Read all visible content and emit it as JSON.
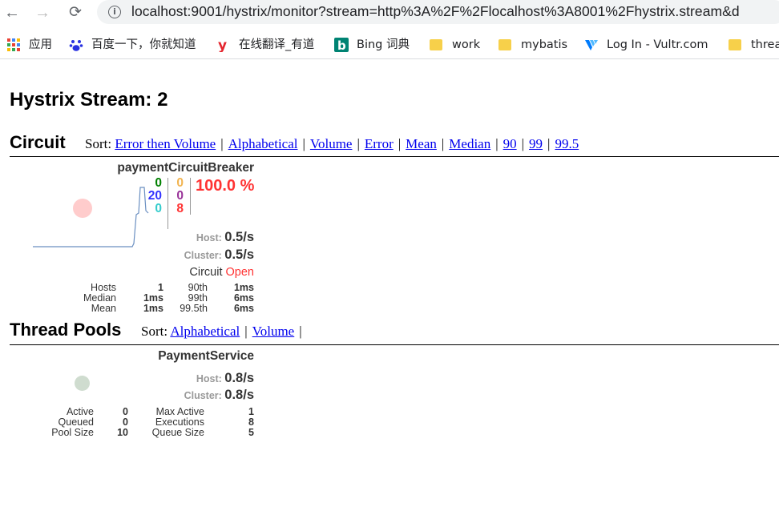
{
  "browser": {
    "url": "localhost:9001/hystrix/monitor?stream=http%3A%2F%2Flocalhost%3A8001%2Fhystrix.stream&d",
    "bookmarks": [
      {
        "label": "应用",
        "icon": "apps-grid-icon"
      },
      {
        "label": "百度一下，你就知道",
        "icon": "baidu-paw-icon"
      },
      {
        "label": "在线翻译_有道",
        "icon": "youdao-logo-icon"
      },
      {
        "label": "Bing 词典",
        "icon": "bing-logo-icon"
      },
      {
        "label": "work",
        "icon": "folder-icon"
      },
      {
        "label": "mybatis",
        "icon": "folder-icon"
      },
      {
        "label": "Log In - Vultr.com",
        "icon": "vultr-logo-icon"
      },
      {
        "label": "threa",
        "icon": "folder-icon"
      }
    ]
  },
  "page": {
    "title": "Hystrix Stream: 2"
  },
  "circuit_section": {
    "heading": "Circuit",
    "sort_label": "Sort:",
    "sort_options": [
      "Error then Volume",
      "Alphabetical",
      "Volume",
      "Error",
      "Mean",
      "Median",
      "90",
      "99",
      "99.5"
    ],
    "monitor": {
      "name": "paymentCircuitBreaker",
      "counts_col1": [
        {
          "value": "0",
          "color": "#008000"
        },
        {
          "value": "20",
          "color": "#3333ff"
        },
        {
          "value": "0",
          "color": "#33cccc"
        }
      ],
      "counts_col2": [
        {
          "value": "0",
          "color": "#f2b450"
        },
        {
          "value": "0",
          "color": "#993399"
        },
        {
          "value": "8",
          "color": "#ff3333"
        }
      ],
      "error_pct": "100.0 %",
      "host_label": "Host:",
      "host_rate": "0.5/s",
      "cluster_label": "Cluster:",
      "cluster_rate": "0.5/s",
      "circuit_label": "Circuit",
      "circuit_state": "Open",
      "stats": {
        "col1_labels": [
          "Hosts",
          "Median",
          "Mean"
        ],
        "col1_values": [
          "1",
          "1ms",
          "1ms"
        ],
        "col2_labels": [
          "90th",
          "99th",
          "99.5th"
        ],
        "col2_values": [
          "1ms",
          "6ms",
          "6ms"
        ]
      },
      "bubble_color": "#ffcccc"
    }
  },
  "thread_section": {
    "heading": "Thread Pools",
    "sort_label": "Sort:",
    "sort_options": [
      "Alphabetical",
      "Volume"
    ],
    "monitor": {
      "name": "PaymentService",
      "host_label": "Host:",
      "host_rate": "0.8/s",
      "cluster_label": "Cluster:",
      "cluster_rate": "0.8/s",
      "stats": {
        "col1_labels": [
          "Active",
          "Queued",
          "Pool Size"
        ],
        "col1_values": [
          "0",
          "0",
          "10"
        ],
        "col2_labels": [
          "Max Active",
          "Executions",
          "Queue Size"
        ],
        "col2_values": [
          "1",
          "8",
          "5"
        ]
      },
      "bubble_color": "#cfdccf"
    }
  }
}
